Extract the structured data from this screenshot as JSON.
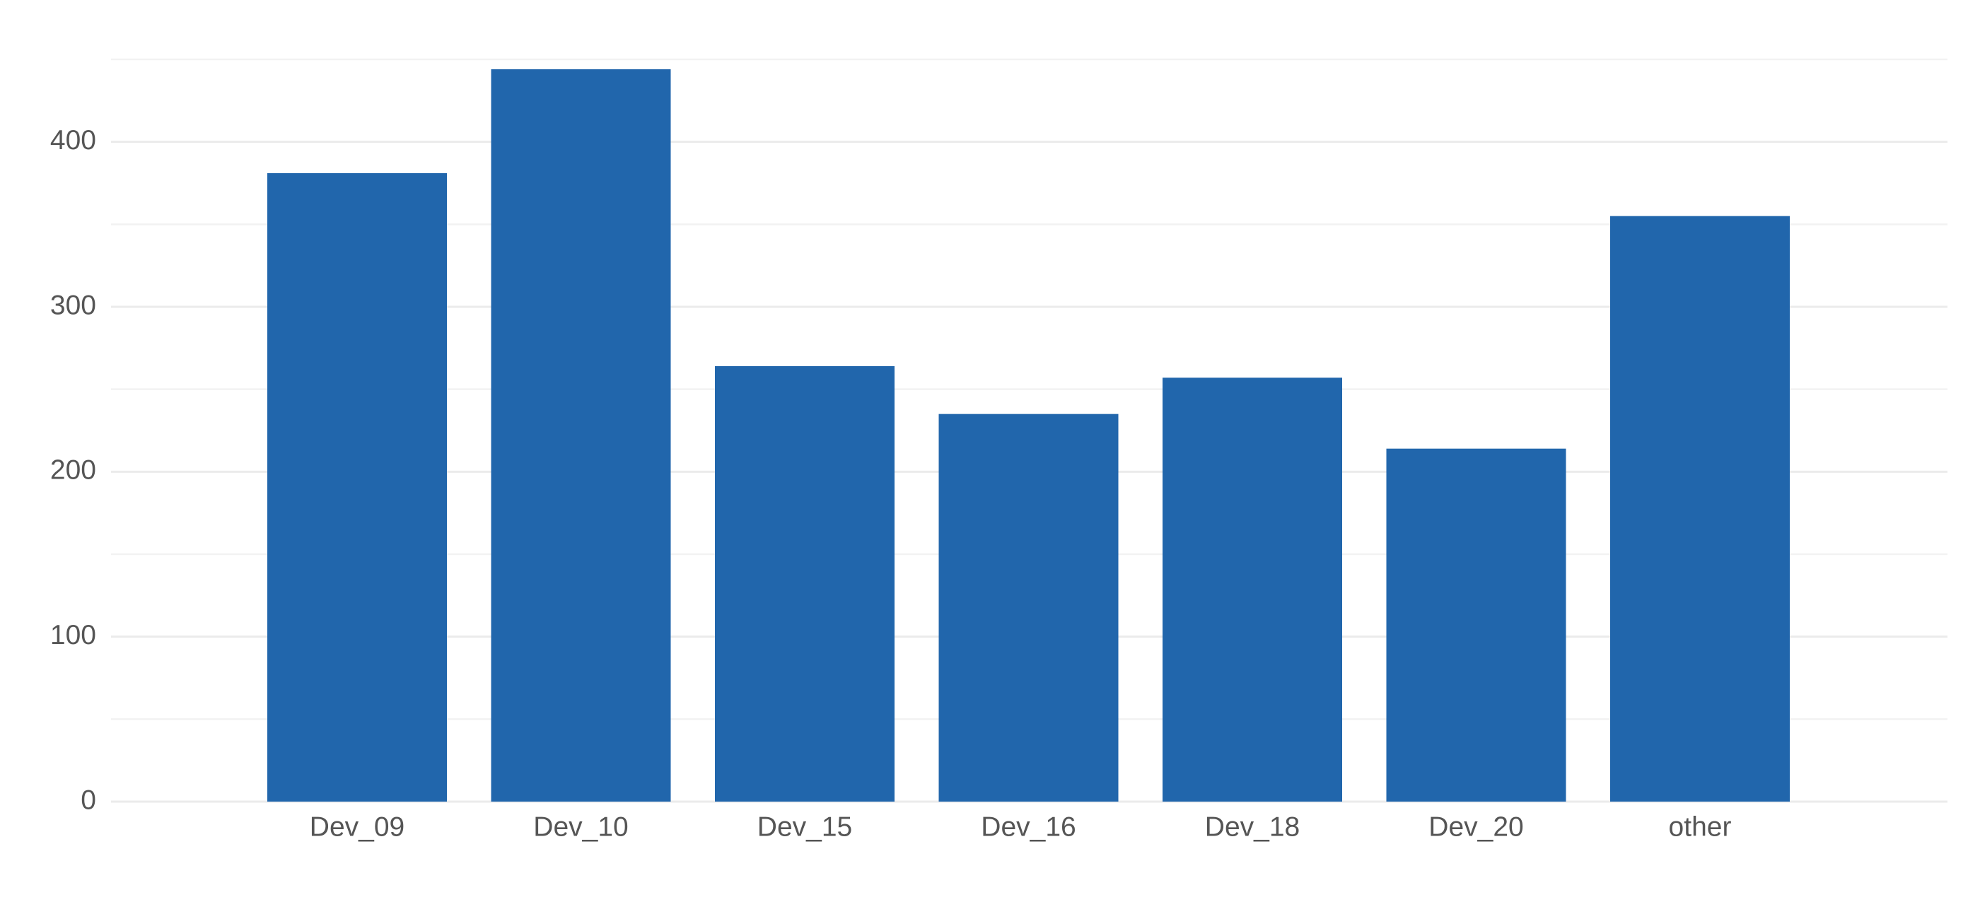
{
  "chart_data": {
    "type": "bar",
    "categories": [
      "Dev_09",
      "Dev_10",
      "Dev_15",
      "Dev_16",
      "Dev_18",
      "Dev_20",
      "other"
    ],
    "values": [
      381,
      444,
      264,
      235,
      257,
      214,
      355
    ],
    "color": "#2166ac",
    "ylim": [
      0,
      450
    ],
    "yticks": [
      0,
      100,
      200,
      300,
      400
    ],
    "minor_yticks": [
      50,
      150,
      250,
      350,
      450
    ],
    "grid": true
  }
}
